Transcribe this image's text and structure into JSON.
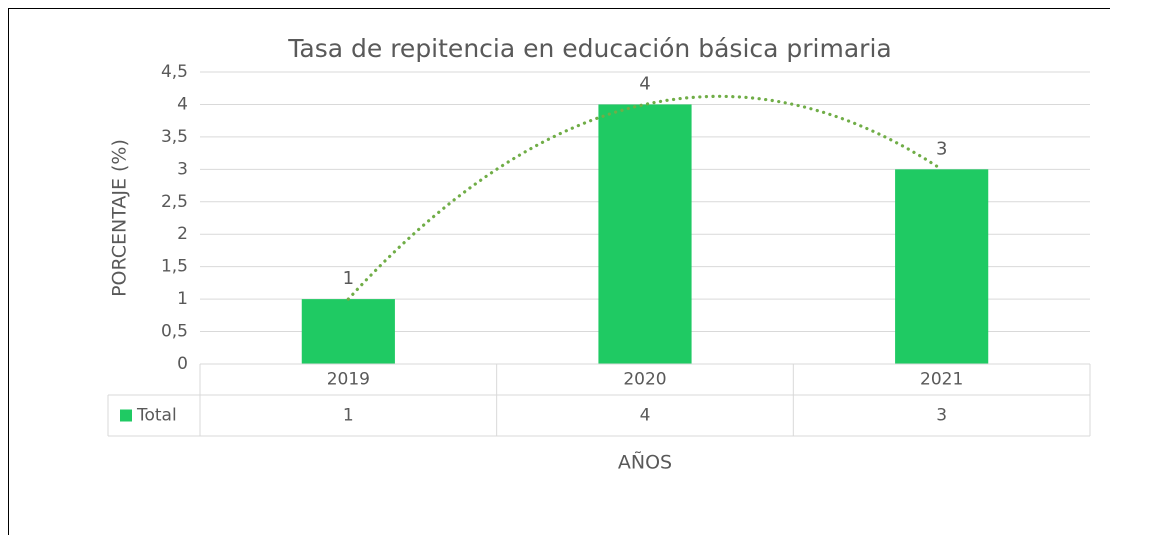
{
  "chart_data": {
    "type": "bar",
    "title": "Tasa de repitencia en educación básica primaria",
    "y_label": "PORCENTAJE (%)",
    "x_label": "AÑOS",
    "categories": [
      "2019",
      "2020",
      "2021"
    ],
    "series": [
      {
        "name": "Total",
        "color": "#1fca63",
        "values": [
          1,
          4,
          3
        ]
      }
    ],
    "ylim": [
      0,
      4.5
    ],
    "yticks": [
      0,
      {
        "value": 0.5,
        "label": "0,5"
      },
      1,
      {
        "value": 1.5,
        "label": "1,5"
      },
      2,
      {
        "value": 2.5,
        "label": "2,5"
      },
      3,
      {
        "value": 3.5,
        "label": "3,5"
      },
      4,
      {
        "value": 4.5,
        "label": "4,5"
      }
    ],
    "grid": true,
    "trendline": true,
    "trendline_color": "#70ad47",
    "data_table": true
  }
}
